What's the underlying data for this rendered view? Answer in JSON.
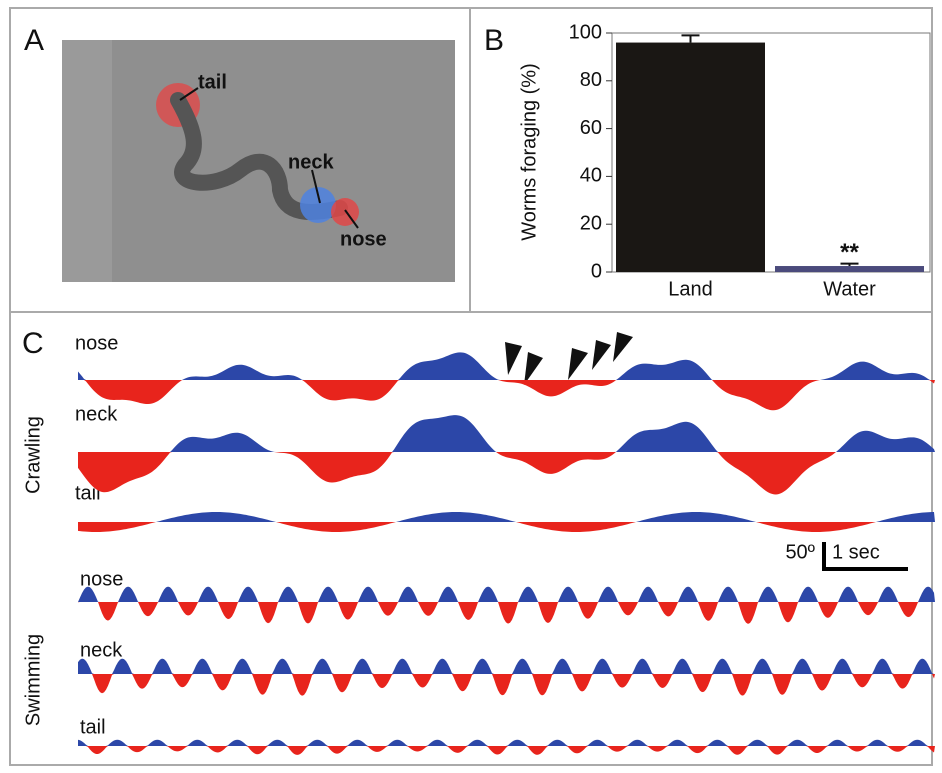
{
  "panels": {
    "a": {
      "label": "A",
      "annotations": [
        "tail",
        "neck",
        "nose"
      ]
    },
    "c": {
      "label": "C",
      "groups": [
        {
          "name": "Crawling",
          "traces": [
            "nose",
            "neck",
            "tail"
          ]
        },
        {
          "name": "Swimming",
          "traces": [
            "nose",
            "neck",
            "tail"
          ]
        }
      ],
      "scale_bar": {
        "angle": "50º",
        "time": "1 sec"
      }
    }
  },
  "chart_data": {
    "type": "bar",
    "panel_label": "B",
    "ylabel": "Worms foraging (%)",
    "categories": [
      "Land",
      "Water"
    ],
    "values": [
      96,
      2.5
    ],
    "errors": [
      3,
      1
    ],
    "significance": [
      null,
      "**"
    ],
    "colors": [
      "#1a1714",
      "#4b4b7c"
    ],
    "ylim": [
      0,
      100
    ],
    "yticks": [
      0,
      20,
      40,
      60,
      80,
      100
    ]
  }
}
